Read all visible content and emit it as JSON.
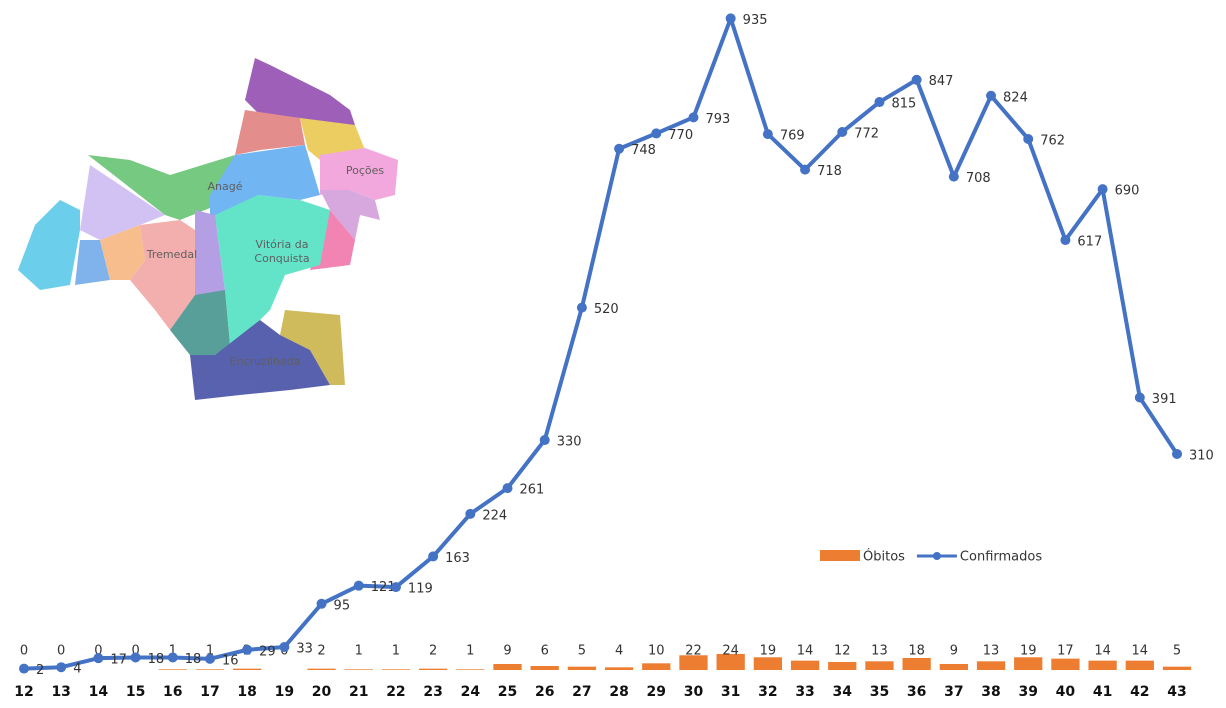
{
  "chart_data": {
    "type": "bar+line",
    "categories": [
      "12",
      "13",
      "14",
      "15",
      "16",
      "17",
      "18",
      "19",
      "20",
      "21",
      "22",
      "23",
      "24",
      "25",
      "26",
      "27",
      "28",
      "29",
      "30",
      "31",
      "32",
      "33",
      "34",
      "35",
      "36",
      "37",
      "38",
      "39",
      "40",
      "41",
      "42",
      "43"
    ],
    "series": [
      {
        "name": "Óbitos",
        "type": "bar",
        "axis": "y2",
        "color": "#ed7d31",
        "values": [
          0,
          0,
          0,
          0,
          1,
          1,
          2,
          0,
          2,
          1,
          1,
          2,
          1,
          9,
          6,
          5,
          4,
          10,
          22,
          24,
          19,
          14,
          12,
          13,
          18,
          9,
          13,
          19,
          17,
          14,
          14,
          5
        ]
      },
      {
        "name": "Confirmados",
        "type": "line",
        "color": "#4472c4",
        "values": [
          2,
          4,
          17,
          18,
          18,
          16,
          29,
          33,
          95,
          121,
          119,
          163,
          224,
          261,
          330,
          520,
          748,
          770,
          793,
          935,
          769,
          718,
          772,
          815,
          847,
          708,
          824,
          762,
          617,
          690,
          391,
          310
        ]
      }
    ],
    "ylim": [
      0,
      960
    ],
    "y2lim": [
      0,
      1000
    ],
    "map_labels": [
      "Anagé",
      "Poções",
      "Vitória da",
      "Conquista",
      "Tremedal",
      "Encruzilhada"
    ]
  }
}
